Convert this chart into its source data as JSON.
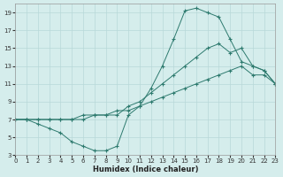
{
  "title": "",
  "xlabel": "Humidex (Indice chaleur)",
  "ylabel": "",
  "background_color": "#d5edec",
  "grid_color": "#b8d8d8",
  "line_color": "#2d7a6e",
  "ylim": [
    3,
    20
  ],
  "xlim": [
    0,
    23
  ],
  "yticks": [
    3,
    5,
    7,
    9,
    11,
    13,
    15,
    17,
    19
  ],
  "xticks": [
    0,
    1,
    2,
    3,
    4,
    5,
    6,
    7,
    8,
    9,
    10,
    11,
    12,
    13,
    14,
    15,
    16,
    17,
    18,
    19,
    20,
    21,
    22,
    23
  ],
  "curve1_x": [
    0,
    1,
    2,
    3,
    4,
    5,
    6,
    7,
    8,
    9,
    10,
    11,
    12,
    13,
    14,
    15,
    16,
    17,
    18,
    19,
    20,
    21,
    22,
    23
  ],
  "curve1_y": [
    7.0,
    7.0,
    6.5,
    6.0,
    5.5,
    4.5,
    4.0,
    3.5,
    3.5,
    4.0,
    7.5,
    8.5,
    10.5,
    13.0,
    16.0,
    19.2,
    19.5,
    19.0,
    18.5,
    16.0,
    13.5,
    13.0,
    12.5,
    11.0
  ],
  "curve2_x": [
    0,
    1,
    2,
    3,
    4,
    5,
    6,
    7,
    8,
    9,
    10,
    11,
    12,
    13,
    14,
    15,
    16,
    17,
    18,
    19,
    20,
    21,
    22,
    23
  ],
  "curve2_y": [
    7.0,
    7.0,
    7.0,
    7.0,
    7.0,
    7.0,
    7.0,
    7.5,
    7.5,
    7.5,
    8.5,
    9.0,
    10.0,
    11.0,
    12.0,
    13.0,
    14.0,
    15.0,
    15.5,
    14.5,
    15.0,
    13.0,
    12.5,
    11.0
  ],
  "curve3_x": [
    0,
    1,
    2,
    3,
    4,
    5,
    6,
    7,
    8,
    9,
    10,
    11,
    12,
    13,
    14,
    15,
    16,
    17,
    18,
    19,
    20,
    21,
    22,
    23
  ],
  "curve3_y": [
    7.0,
    7.0,
    7.0,
    7.0,
    7.0,
    7.0,
    7.5,
    7.5,
    7.5,
    8.0,
    8.0,
    8.5,
    9.0,
    9.5,
    10.0,
    10.5,
    11.0,
    11.5,
    12.0,
    12.5,
    13.0,
    12.0,
    12.0,
    11.0
  ]
}
